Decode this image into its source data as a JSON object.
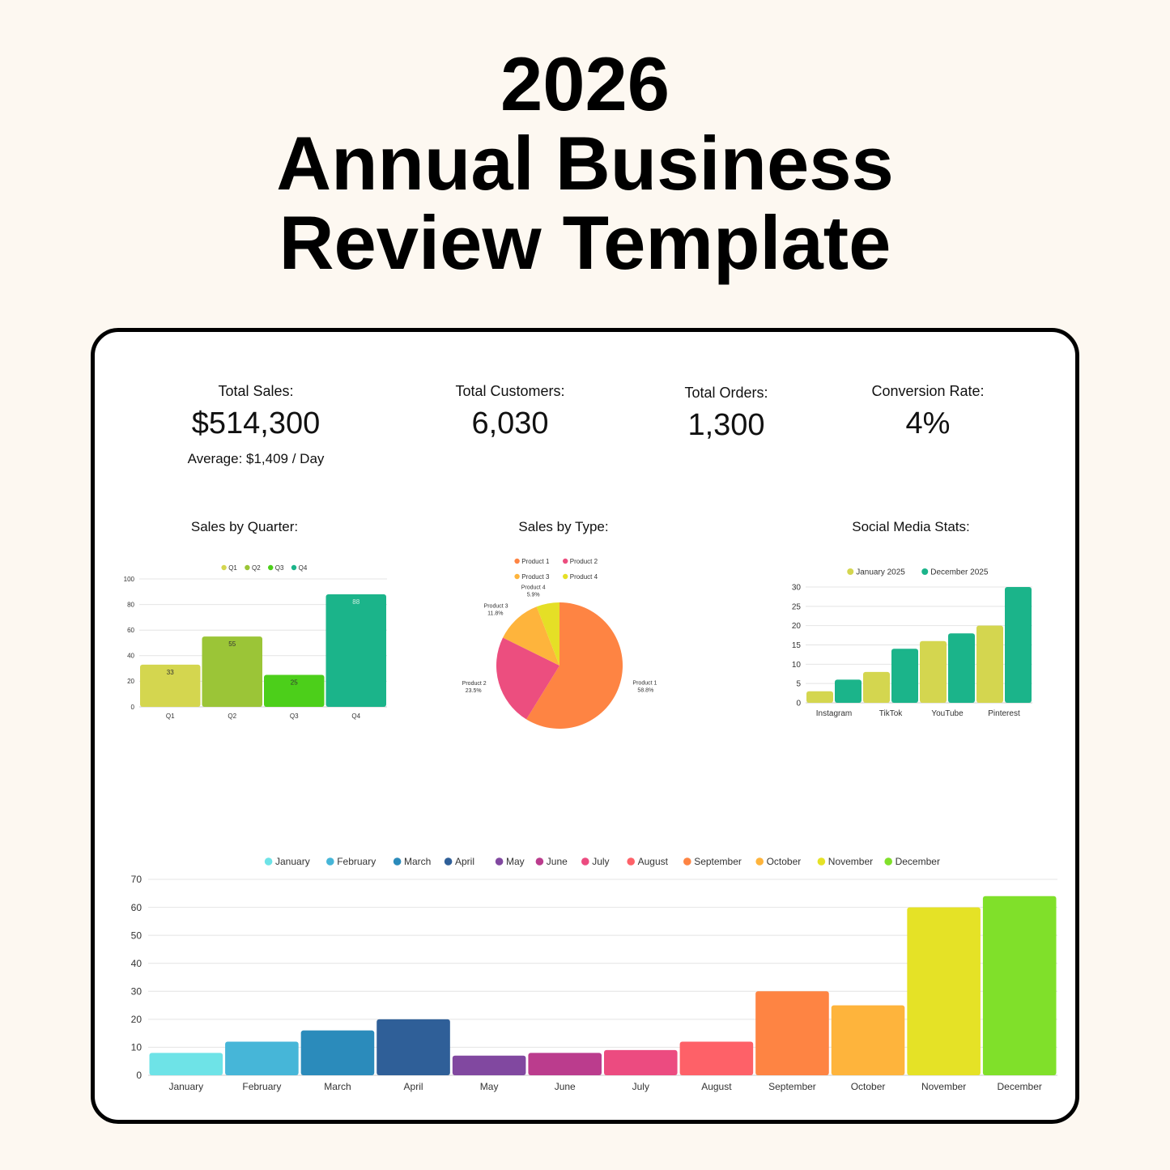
{
  "title": {
    "line1": "2026",
    "line2": "Annual Business",
    "line3": "Review Template"
  },
  "kpis": {
    "total_sales": {
      "label": "Total Sales:",
      "value": "$514,300",
      "sub": "Average: $1,409 / Day"
    },
    "total_customers": {
      "label": "Total Customers:",
      "value": "6,030"
    },
    "total_orders": {
      "label": "Total Orders:",
      "value": "1,300"
    },
    "conversion_rate": {
      "label": "Conversion Rate:",
      "value": "4%"
    }
  },
  "chart_titles": {
    "quarter": "Sales by Quarter:",
    "type": "Sales by Type:",
    "social": "Social Media Stats:"
  },
  "chart_data": [
    {
      "type": "bar",
      "title": "Sales by Quarter:",
      "categories": [
        "Q1",
        "Q2",
        "Q3",
        "Q4"
      ],
      "values": [
        33,
        55,
        25,
        88
      ],
      "colors": [
        "#d4d64f",
        "#9bc537",
        "#4ccf1a",
        "#1bb48a"
      ],
      "legend": [
        "Q1",
        "Q2",
        "Q3",
        "Q4"
      ],
      "ylim": [
        0,
        100
      ],
      "yticks": [
        0,
        20,
        40,
        60,
        80,
        100
      ],
      "data_labels": true
    },
    {
      "type": "pie",
      "title": "Sales by Type:",
      "labels": [
        "Product 1",
        "Product 2",
        "Product 3",
        "Product 4"
      ],
      "values": [
        58.8,
        23.5,
        11.8,
        5.9
      ],
      "value_labels": [
        "58.8%",
        "23.5%",
        "11.8%",
        "5.9%"
      ],
      "colors": [
        "#fe8443",
        "#ec4e7f",
        "#feb43c",
        "#e5df26"
      ]
    },
    {
      "type": "bar",
      "title": "Social Media Stats:",
      "categories": [
        "Instagram",
        "TikTok",
        "YouTube",
        "Pinterest"
      ],
      "series": [
        {
          "name": "January 2025",
          "values": [
            3,
            8,
            16,
            20
          ],
          "color": "#d4d64f"
        },
        {
          "name": "December 2025",
          "values": [
            6,
            14,
            18,
            30
          ],
          "color": "#1bb48a"
        }
      ],
      "ylim": [
        0,
        30
      ],
      "yticks": [
        0,
        5,
        10,
        15,
        20,
        25,
        30
      ]
    },
    {
      "type": "bar",
      "title": "",
      "categories": [
        "January",
        "February",
        "March",
        "April",
        "May",
        "June",
        "July",
        "August",
        "September",
        "October",
        "November",
        "December"
      ],
      "values": [
        8,
        12,
        16,
        20,
        7,
        8,
        9,
        12,
        30,
        25,
        60,
        64
      ],
      "colors": [
        "#6ee3e7",
        "#46b6d8",
        "#2b8bbb",
        "#2f5f98",
        "#8148a0",
        "#bb3c8d",
        "#ec4b80",
        "#fe6168",
        "#fe8443",
        "#feb43c",
        "#e5e226",
        "#80e02a"
      ],
      "legend": [
        "January",
        "February",
        "March",
        "April",
        "May",
        "June",
        "July",
        "August",
        "September",
        "October",
        "November",
        "December"
      ],
      "ylim": [
        0,
        70
      ],
      "yticks": [
        0,
        10,
        20,
        30,
        40,
        50,
        60,
        70
      ]
    }
  ]
}
